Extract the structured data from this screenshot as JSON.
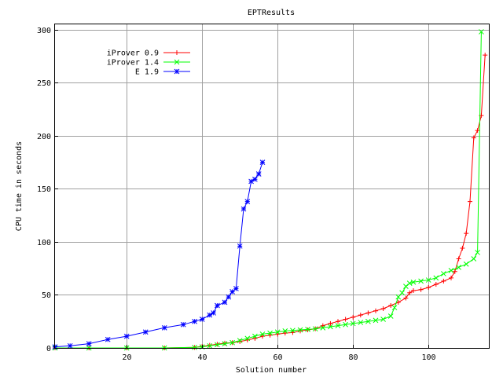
{
  "chart_data": {
    "type": "line",
    "title": "EPTResults",
    "xlabel": "Solution number",
    "ylabel": "CPU time in seconds",
    "xlim": [
      1,
      116
    ],
    "ylim": [
      0,
      305
    ],
    "x_ticks": [
      20,
      40,
      60,
      80,
      100
    ],
    "y_ticks": [
      0,
      50,
      100,
      150,
      200,
      250,
      300
    ],
    "grid": true,
    "legend": "top-left",
    "series": [
      {
        "name": "iProver 0.9",
        "color": "#ff0000",
        "marker": "plus",
        "x": [
          1,
          10,
          20,
          30,
          38,
          40,
          42,
          44,
          46,
          48,
          50,
          52,
          54,
          56,
          58,
          60,
          62,
          64,
          66,
          68,
          70,
          72,
          74,
          76,
          78,
          80,
          82,
          84,
          86,
          88,
          90,
          92,
          94,
          95,
          96,
          98,
          100,
          102,
          104,
          106,
          107,
          108,
          109,
          110,
          111,
          112,
          113,
          114,
          115
        ],
        "values": [
          0,
          0,
          0,
          0,
          0.5,
          1.5,
          2.5,
          3.5,
          4.5,
          5,
          6,
          7.5,
          9,
          11,
          12,
          13,
          14,
          14.5,
          16,
          17,
          18,
          21,
          23,
          25,
          27,
          29,
          31,
          33,
          35,
          37,
          40,
          43,
          47,
          52,
          54,
          55,
          57,
          60,
          63,
          66,
          72,
          84,
          94,
          108,
          138,
          198,
          205,
          219,
          276
        ]
      },
      {
        "name": "iProver 1.4",
        "color": "#00ff00",
        "marker": "x",
        "x": [
          1,
          10,
          20,
          30,
          38,
          40,
          42,
          44,
          46,
          48,
          50,
          52,
          54,
          56,
          58,
          60,
          62,
          64,
          66,
          68,
          70,
          72,
          74,
          76,
          78,
          80,
          82,
          84,
          86,
          88,
          90,
          91,
          92,
          93,
          94,
          95,
          96,
          98,
          100,
          102,
          104,
          106,
          108,
          110,
          112,
          113,
          114
        ],
        "values": [
          0,
          0,
          0,
          0,
          0.5,
          1,
          2,
          3,
          4,
          5,
          7,
          9,
          11,
          13,
          14,
          15,
          16,
          16.5,
          17,
          17.5,
          18,
          19,
          20,
          21,
          22,
          23,
          24,
          25,
          26,
          27,
          30,
          38,
          48,
          52,
          58,
          61,
          62,
          63,
          64,
          66,
          70,
          73,
          76,
          79,
          84,
          90,
          298
        ]
      },
      {
        "name": "E 1.9",
        "color": "#0000ff",
        "marker": "star",
        "x": [
          1,
          5,
          10,
          15,
          20,
          25,
          30,
          35,
          38,
          40,
          42,
          43,
          44,
          46,
          47,
          48,
          49,
          50,
          51,
          52,
          53,
          54,
          55,
          56
        ],
        "values": [
          1,
          2,
          4,
          8,
          11,
          15,
          19,
          22,
          25,
          27,
          31,
          33,
          40,
          43,
          48,
          53,
          56,
          96,
          131,
          138,
          157,
          159,
          164,
          175
        ]
      }
    ]
  }
}
